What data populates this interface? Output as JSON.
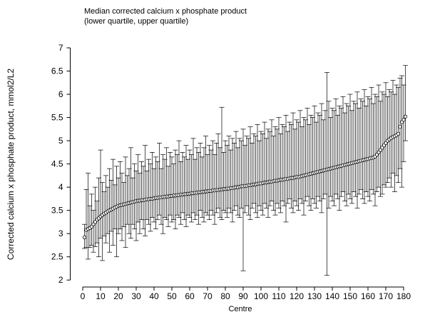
{
  "chart_data": {
    "type": "scatter",
    "title": "Median corrected calcium x phosphate product",
    "subtitle": "(lower quartile, upper quartile)",
    "x_label": "Centre",
    "y_label": "Corrected calcium x phosphate product, mmol2/L2",
    "xlim": [
      -7,
      184
    ],
    "ylim": [
      1.85,
      7.1
    ],
    "xticks": [
      0,
      10,
      20,
      30,
      40,
      50,
      60,
      70,
      80,
      90,
      100,
      110,
      120,
      130,
      140,
      150,
      160,
      170,
      180
    ],
    "yticks": [
      2,
      2.5,
      3,
      3.5,
      4,
      4.5,
      5,
      5.5,
      6,
      6.5,
      7
    ],
    "color": "#000000",
    "x": [
      1,
      2,
      3,
      4,
      5,
      6,
      7,
      8,
      9,
      10,
      11,
      12,
      13,
      14,
      15,
      16,
      17,
      18,
      19,
      20,
      21,
      22,
      23,
      24,
      25,
      26,
      27,
      28,
      29,
      30,
      31,
      32,
      33,
      34,
      35,
      36,
      37,
      38,
      39,
      40,
      41,
      42,
      43,
      44,
      45,
      46,
      47,
      48,
      49,
      50,
      51,
      52,
      53,
      54,
      55,
      56,
      57,
      58,
      59,
      60,
      61,
      62,
      63,
      64,
      65,
      66,
      67,
      68,
      69,
      70,
      71,
      72,
      73,
      74,
      75,
      76,
      77,
      78,
      79,
      80,
      81,
      82,
      83,
      84,
      85,
      86,
      87,
      88,
      89,
      90,
      91,
      92,
      93,
      94,
      95,
      96,
      97,
      98,
      99,
      100,
      101,
      102,
      103,
      104,
      105,
      106,
      107,
      108,
      109,
      110,
      111,
      112,
      113,
      114,
      115,
      116,
      117,
      118,
      119,
      120,
      121,
      122,
      123,
      124,
      125,
      126,
      127,
      128,
      129,
      130,
      131,
      132,
      133,
      134,
      135,
      136,
      137,
      138,
      139,
      140,
      141,
      142,
      143,
      144,
      145,
      146,
      147,
      148,
      149,
      150,
      151,
      152,
      153,
      154,
      155,
      156,
      157,
      158,
      159,
      160,
      161,
      162,
      163,
      164,
      165,
      166,
      167,
      168,
      169,
      170,
      171,
      172,
      173,
      174,
      175,
      176,
      177,
      178,
      179,
      180,
      181
    ],
    "values": [
      2.92,
      3.08,
      3.1,
      3.12,
      3.15,
      3.2,
      3.25,
      3.3,
      3.33,
      3.37,
      3.4,
      3.43,
      3.45,
      3.48,
      3.5,
      3.52,
      3.54,
      3.56,
      3.58,
      3.6,
      3.61,
      3.62,
      3.63,
      3.64,
      3.65,
      3.66,
      3.67,
      3.68,
      3.69,
      3.7,
      3.71,
      3.71,
      3.72,
      3.72,
      3.73,
      3.74,
      3.74,
      3.75,
      3.75,
      3.76,
      3.77,
      3.77,
      3.78,
      3.78,
      3.79,
      3.79,
      3.8,
      3.8,
      3.81,
      3.81,
      3.82,
      3.82,
      3.83,
      3.83,
      3.84,
      3.84,
      3.85,
      3.85,
      3.86,
      3.86,
      3.87,
      3.87,
      3.88,
      3.88,
      3.89,
      3.89,
      3.9,
      3.9,
      3.91,
      3.91,
      3.92,
      3.92,
      3.93,
      3.93,
      3.94,
      3.94,
      3.95,
      3.95,
      3.96,
      3.96,
      3.97,
      3.97,
      3.98,
      3.98,
      3.99,
      4.0,
      4.0,
      4.01,
      4.02,
      4.02,
      4.03,
      4.03,
      4.04,
      4.04,
      4.05,
      4.06,
      4.06,
      4.07,
      4.08,
      4.08,
      4.09,
      4.1,
      4.1,
      4.11,
      4.12,
      4.12,
      4.13,
      4.14,
      4.14,
      4.15,
      4.16,
      4.16,
      4.17,
      4.18,
      4.18,
      4.19,
      4.2,
      4.2,
      4.21,
      4.22,
      4.22,
      4.23,
      4.24,
      4.25,
      4.26,
      4.27,
      4.28,
      4.29,
      4.3,
      4.31,
      4.32,
      4.33,
      4.34,
      4.35,
      4.36,
      4.37,
      4.38,
      4.39,
      4.4,
      4.41,
      4.42,
      4.43,
      4.44,
      4.45,
      4.46,
      4.47,
      4.48,
      4.49,
      4.5,
      4.51,
      4.52,
      4.53,
      4.54,
      4.55,
      4.56,
      4.57,
      4.58,
      4.59,
      4.6,
      4.61,
      4.62,
      4.63,
      4.64,
      4.66,
      4.7,
      4.75,
      4.8,
      4.85,
      4.9,
      4.95,
      5.0,
      5.03,
      5.06,
      5.08,
      5.1,
      5.12,
      5.15,
      5.3,
      5.4,
      5.45,
      5.52
    ],
    "lower": [
      2.68,
      2.7,
      2.45,
      2.7,
      2.75,
      2.6,
      2.72,
      2.8,
      2.5,
      2.9,
      2.42,
      2.95,
      2.8,
      3.0,
      2.6,
      3.05,
      2.75,
      3.1,
      2.5,
      3.0,
      3.1,
      2.85,
      3.15,
      2.7,
      3.2,
      3.0,
      2.9,
      3.2,
      3.1,
      2.85,
      3.25,
      3.0,
      3.3,
      3.1,
      2.95,
      3.3,
      3.2,
      3.05,
      3.35,
      3.25,
      3.1,
      3.3,
      3.4,
      3.2,
      3.0,
      3.35,
      3.3,
      3.15,
      3.4,
      3.25,
      3.3,
      3.1,
      3.4,
      3.35,
      3.2,
      3.45,
      3.3,
      3.15,
      3.4,
      3.35,
      3.25,
      3.45,
      3.3,
      3.4,
      3.2,
      3.5,
      3.35,
      3.25,
      3.45,
      3.4,
      3.3,
      3.5,
      3.4,
      3.2,
      3.45,
      3.55,
      3.35,
      3.3,
      3.5,
      3.45,
      3.35,
      3.55,
      3.45,
      3.25,
      3.5,
      3.6,
      3.4,
      3.35,
      3.55,
      2.2,
      3.45,
      3.6,
      3.4,
      3.3,
      3.55,
      3.65,
      3.45,
      3.35,
      3.6,
      3.5,
      3.4,
      3.65,
      3.55,
      3.35,
      3.6,
      3.7,
      3.5,
      3.4,
      3.65,
      3.55,
      3.45,
      3.7,
      3.6,
      3.25,
      3.65,
      3.75,
      3.55,
      3.45,
      3.7,
      3.6,
      3.5,
      3.75,
      3.65,
      3.4,
      3.7,
      3.8,
      3.6,
      3.5,
      3.75,
      3.65,
      3.55,
      3.8,
      3.7,
      3.45,
      3.75,
      3.85,
      2.1,
      3.55,
      3.8,
      3.7,
      3.6,
      3.85,
      3.75,
      3.5,
      3.8,
      3.9,
      3.7,
      3.6,
      3.85,
      3.75,
      3.65,
      3.9,
      3.8,
      3.55,
      3.85,
      3.95,
      3.75,
      3.65,
      3.9,
      3.8,
      3.7,
      3.95,
      3.85,
      3.6,
      3.9,
      4.0,
      3.8,
      3.85,
      4.05,
      4.0,
      4.1,
      4.2,
      4.0,
      4.3,
      3.9,
      4.25,
      4.1,
      4.4,
      4.0,
      4.55,
      5.0
    ],
    "upper": [
      3.2,
      3.95,
      4.3,
      3.6,
      3.85,
      3.5,
      4.0,
      3.7,
      4.2,
      4.8,
      4.1,
      3.9,
      4.25,
      4.0,
      4.4,
      4.15,
      4.6,
      4.05,
      4.45,
      4.2,
      4.55,
      4.3,
      4.1,
      4.65,
      4.25,
      4.4,
      4.85,
      4.2,
      4.5,
      4.35,
      4.7,
      4.3,
      4.55,
      4.45,
      4.9,
      4.35,
      4.6,
      4.5,
      4.75,
      4.4,
      4.65,
      4.55,
      4.95,
      4.4,
      4.7,
      4.6,
      4.85,
      4.45,
      4.75,
      4.65,
      4.5,
      4.8,
      4.7,
      5.0,
      4.55,
      4.75,
      4.65,
      4.9,
      4.6,
      4.8,
      4.7,
      5.05,
      4.6,
      4.85,
      4.75,
      4.95,
      4.65,
      4.85,
      5.1,
      4.7,
      4.9,
      4.8,
      5.0,
      4.7,
      4.95,
      5.15,
      4.85,
      5.72,
      4.75,
      5.0,
      4.9,
      5.1,
      4.8,
      5.05,
      4.95,
      5.2,
      4.85,
      5.05,
      5.0,
      5.25,
      4.9,
      5.1,
      5.05,
      5.3,
      4.95,
      5.15,
      5.1,
      5.35,
      5.0,
      5.2,
      5.15,
      5.4,
      5.05,
      5.25,
      5.2,
      5.45,
      5.1,
      5.3,
      5.25,
      5.5,
      5.15,
      5.35,
      5.3,
      5.55,
      5.2,
      5.4,
      5.35,
      5.6,
      5.25,
      5.45,
      5.4,
      5.65,
      5.3,
      5.5,
      5.45,
      5.7,
      5.35,
      5.55,
      5.5,
      5.75,
      5.4,
      5.6,
      5.55,
      5.8,
      5.45,
      5.65,
      6.47,
      5.85,
      5.5,
      5.7,
      5.65,
      5.9,
      5.55,
      5.75,
      5.7,
      5.95,
      5.6,
      5.8,
      5.75,
      6.0,
      5.65,
      5.85,
      5.8,
      6.05,
      5.7,
      5.9,
      5.85,
      6.1,
      5.75,
      5.95,
      5.9,
      6.15,
      5.8,
      6.0,
      5.95,
      6.2,
      5.85,
      6.05,
      6.0,
      6.25,
      5.95,
      6.1,
      6.05,
      6.3,
      6.0,
      6.2,
      6.15,
      6.35,
      6.4,
      6.2,
      6.62
    ]
  }
}
